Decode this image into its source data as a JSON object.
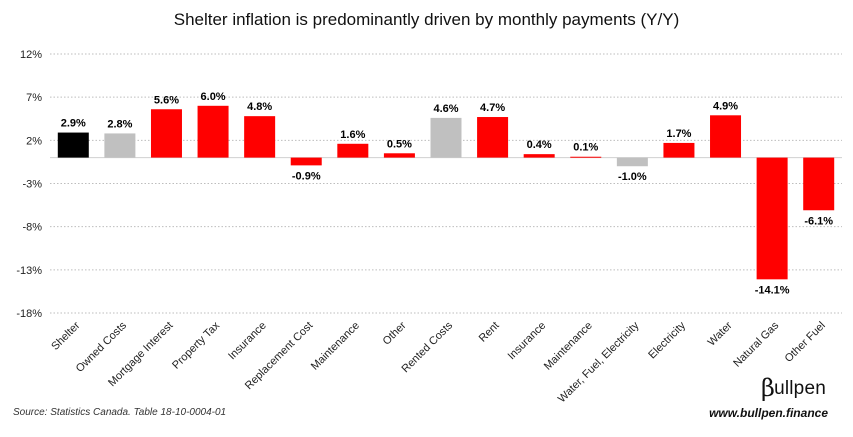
{
  "chart_data": {
    "type": "bar",
    "title": "Shelter inflation is predominantly driven by monthly payments (Y/Y)",
    "categories": [
      "Shelter",
      "Owned Costs",
      "Mortgage Interest",
      "Property Tax",
      "Insurance",
      "Replacement Cost",
      "Maintenance",
      "Other",
      "Rented Costs",
      "Rent",
      "Insurance",
      "Maintenance",
      "Water, Fuel, Electricity",
      "Electricity",
      "Water",
      "Natural Gas",
      "Other Fuel"
    ],
    "values": [
      2.9,
      2.8,
      5.6,
      6.0,
      4.8,
      -0.9,
      1.6,
      0.5,
      4.6,
      4.7,
      0.4,
      0.1,
      -1.0,
      1.7,
      4.9,
      -14.1,
      -6.1
    ],
    "data_labels": [
      "2.9%",
      "2.8%",
      "5.6%",
      "6.0%",
      "4.8%",
      "-0.9%",
      "1.6%",
      "0.5%",
      "4.6%",
      "4.7%",
      "0.4%",
      "0.1%",
      "-1.0%",
      "1.7%",
      "4.9%",
      "-14.1%",
      "-6.1%"
    ],
    "bar_colors": [
      "#000000",
      "#c0c0c0",
      "#ff0000",
      "#ff0000",
      "#ff0000",
      "#ff0000",
      "#ff0000",
      "#ff0000",
      "#c0c0c0",
      "#ff0000",
      "#ff0000",
      "#ff0000",
      "#c0c0c0",
      "#ff0000",
      "#ff0000",
      "#ff0000",
      "#ff0000"
    ],
    "ylim": [
      -18,
      12
    ],
    "yticks": [
      12,
      7,
      2,
      -3,
      -8,
      -13,
      -18
    ],
    "ytick_labels": [
      "12%",
      "7%",
      "2%",
      "-3%",
      "-8%",
      "-13%",
      "-18%"
    ],
    "grid": "horizontal dotted",
    "xlabel": "",
    "ylabel": ""
  },
  "footer": {
    "source": "Source: Statistics Canada. Table 18-10-0004-01",
    "url": "www.bullpen.finance",
    "logo_symbol": "β",
    "logo_text": "ullpen"
  }
}
